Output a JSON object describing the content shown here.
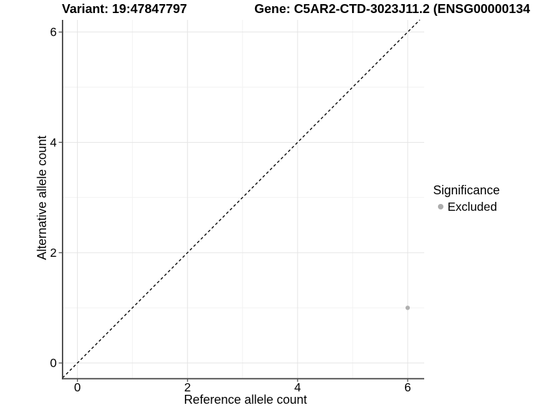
{
  "figure": {
    "title_left": "Variant: 19:47847797",
    "title_right": "Gene: C5AR2-CTD-3023J11.2 (ENSG00000134"
  },
  "legend": {
    "title": "Significance",
    "items": [
      {
        "label": "Excluded",
        "marker": "point-icon",
        "color": "#adadad"
      }
    ]
  },
  "chart_data": {
    "type": "scatter",
    "title": "Variant: 19:47847797",
    "title_right": "Gene: C5AR2-CTD-3023J11.2 (ENSG00000134",
    "xlabel": "Reference allele count",
    "ylabel": "Alternative allele count",
    "xlim": [
      -0.27,
      6.3
    ],
    "ylim": [
      -0.285,
      6.22
    ],
    "xticks": [
      0,
      2,
      4,
      6
    ],
    "yticks": [
      0,
      2,
      4,
      6
    ],
    "xticks_minor": [
      1,
      3,
      5
    ],
    "yticks_minor": [
      1,
      3,
      5
    ],
    "grid": true,
    "legend_position": "right-center",
    "series": [
      {
        "name": "Excluded",
        "color": "#b0b0b0",
        "points": [
          {
            "x": 6,
            "y": 1
          }
        ]
      }
    ],
    "annotations": [
      {
        "type": "reference-line",
        "equation": "y = x",
        "style": "dashed",
        "color": "#000000"
      }
    ]
  },
  "colors": {
    "background": "#ffffff",
    "grid_major": "#e4e4e4",
    "grid_minor": "#f2f2f2",
    "axis_line": "#3c3c3c",
    "tick_mark": "#4d4d4d",
    "text": "#000000",
    "point": "#b0b0b0"
  }
}
